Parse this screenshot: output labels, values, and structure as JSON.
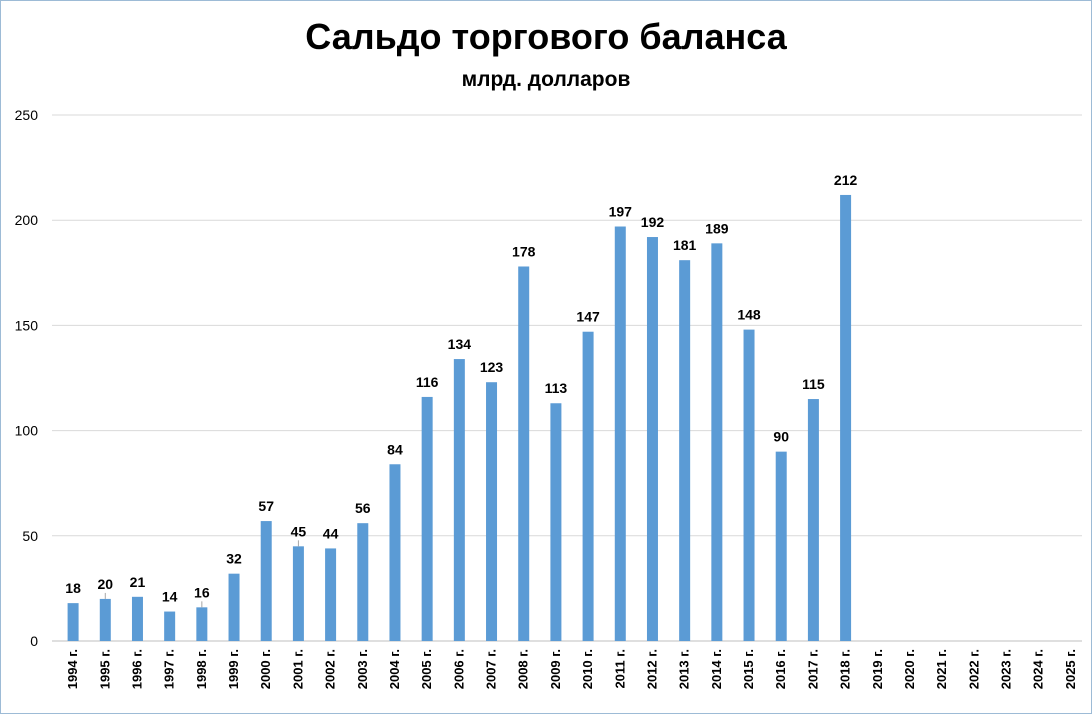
{
  "chart_data": {
    "type": "bar",
    "title": "Сальдо торгового баланса",
    "subtitle": "млрд. долларов",
    "xlabel": "",
    "ylabel": "",
    "ylim": [
      0,
      250
    ],
    "yticks": [
      0,
      50,
      100,
      150,
      200,
      250
    ],
    "grid": true,
    "legend": "none",
    "bar_color": "#5b9bd5",
    "categories": [
      "1994 г.",
      "1995 г.",
      "1996 г.",
      "1997 г.",
      "1998 г.",
      "1999 г.",
      "2000 г.",
      "2001 г.",
      "2002 г.",
      "2003 г.",
      "2004 г.",
      "2005 г.",
      "2006 г.",
      "2007 г.",
      "2008 г.",
      "2009 г.",
      "2010 г.",
      "2011 г.",
      "2012 г.",
      "2013 г.",
      "2014 г.",
      "2015 г.",
      "2016 г.",
      "2017 г.",
      "2018 г.",
      "2019 г.",
      "2020 г.",
      "2021 г.",
      "2022 г.",
      "2023 г.",
      "2024 г.",
      "2025 г."
    ],
    "values": [
      18,
      20,
      21,
      14,
      16,
      32,
      57,
      45,
      44,
      56,
      84,
      116,
      134,
      123,
      178,
      113,
      147,
      197,
      192,
      181,
      189,
      148,
      90,
      115,
      212,
      null,
      null,
      null,
      null,
      null,
      null,
      null
    ]
  }
}
